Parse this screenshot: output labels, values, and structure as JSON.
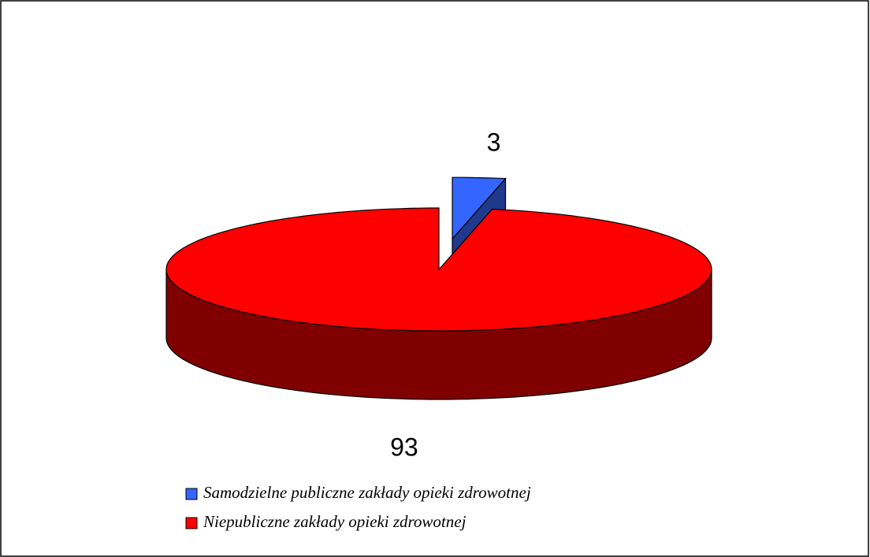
{
  "chart_data": {
    "type": "pie",
    "categories": [
      "Samodzielne publiczne zakłady opieki zdrowotnej",
      "Niepubliczne zakłady opieki zdrowotnej"
    ],
    "values": [
      3,
      93
    ],
    "colors": [
      "#3366ff",
      "#ff0000"
    ],
    "side_colors": [
      "#1f3a8c",
      "#800000"
    ],
    "exploded": [
      true,
      false
    ]
  }
}
